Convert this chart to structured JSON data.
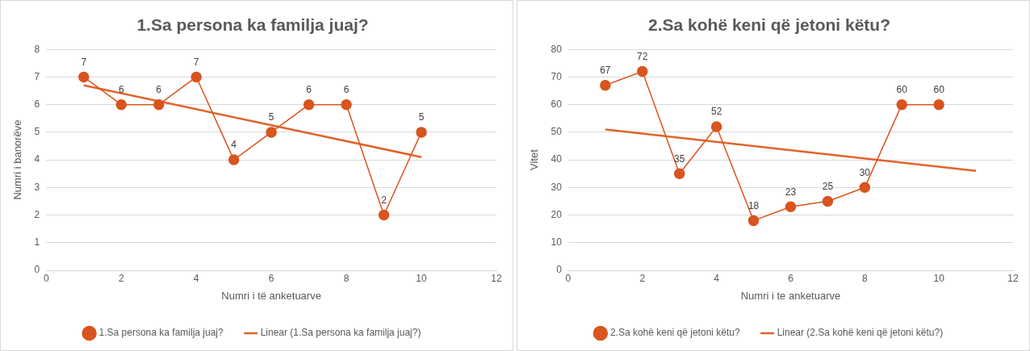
{
  "chart_data": [
    {
      "type": "line",
      "title": "1.Sa persona ka familja juaj?",
      "xlabel": "Numri i të anketuarve",
      "ylabel": "Numri i banorëve",
      "x": [
        1,
        2,
        3,
        4,
        5,
        6,
        7,
        8,
        9,
        10
      ],
      "xlim": [
        0,
        12
      ],
      "xticks": [
        0,
        2,
        4,
        6,
        8,
        10,
        12
      ],
      "ylim": [
        0,
        8
      ],
      "yticks": [
        0,
        1,
        2,
        3,
        4,
        5,
        6,
        7,
        8
      ],
      "grid": "y",
      "legend": "bottom",
      "marker": "circle",
      "series": [
        {
          "name": "1.Sa persona ka familja juaj?",
          "color": "#d9541e",
          "values": [
            7,
            6,
            6,
            7,
            4,
            5,
            6,
            6,
            2,
            5
          ],
          "value_labels": [
            "7",
            "6",
            "6",
            "7",
            "4",
            "5",
            "6",
            "6",
            "2",
            "5"
          ]
        },
        {
          "name": "Linear (1.Sa persona ka familja juaj?)",
          "type": "line",
          "marker": "none",
          "color": "#e2632a",
          "x": [
            1,
            10
          ],
          "values": [
            6.7,
            4.1
          ]
        }
      ]
    },
    {
      "type": "line",
      "title": "2.Sa kohë keni që jetoni këtu?",
      "xlabel": "Numri i te anketuarve",
      "ylabel": "Vitet",
      "x": [
        1,
        2,
        3,
        4,
        5,
        6,
        7,
        8,
        9,
        10
      ],
      "xlim": [
        0,
        12
      ],
      "xticks": [
        0,
        2,
        4,
        6,
        8,
        10,
        12
      ],
      "ylim": [
        0,
        80
      ],
      "yticks": [
        0,
        10,
        20,
        30,
        40,
        50,
        60,
        70,
        80
      ],
      "grid": "y",
      "legend": "bottom",
      "marker": "circle",
      "series": [
        {
          "name": "2.Sa kohë keni që jetoni këtu?",
          "color": "#d9541e",
          "values": [
            67,
            72,
            35,
            52,
            18,
            23,
            25,
            30,
            60,
            60
          ],
          "value_labels": [
            "67",
            "72",
            "35",
            "52",
            "18",
            "23",
            "25",
            "30",
            "60",
            "60"
          ]
        },
        {
          "name": "Linear (2.Sa kohë keni që jetoni këtu?)",
          "type": "line",
          "marker": "none",
          "color": "#e2632a",
          "x": [
            1,
            11
          ],
          "values": [
            51,
            36
          ]
        }
      ]
    }
  ]
}
